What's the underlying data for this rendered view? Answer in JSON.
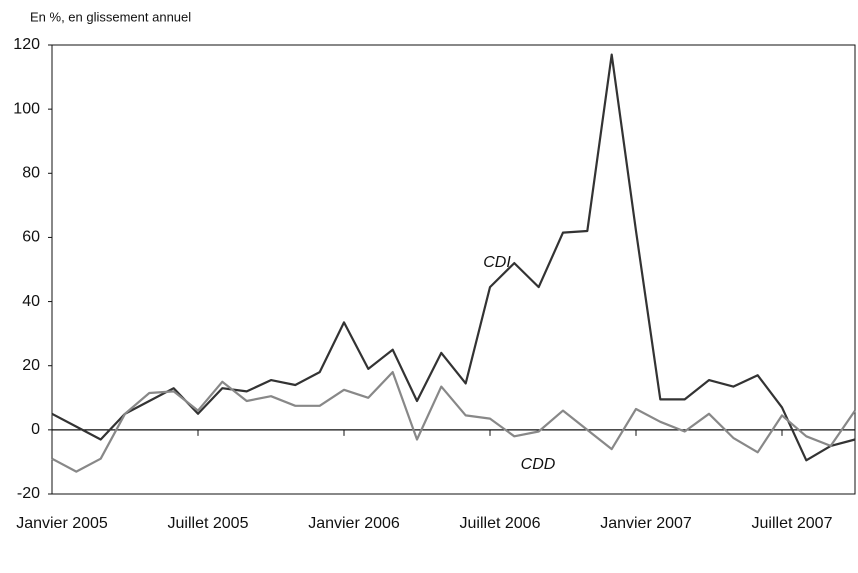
{
  "chart_data": {
    "type": "line",
    "subtitle": "En %, en glissement annuel",
    "categories": [
      "Janvier 2005",
      null,
      null,
      null,
      null,
      null,
      "Juillet 2005",
      null,
      null,
      null,
      null,
      null,
      "Janvier 2006",
      null,
      null,
      null,
      null,
      null,
      "Juillet 2006",
      null,
      null,
      null,
      null,
      null,
      "Janvier 2007",
      null,
      null,
      null,
      null,
      null,
      "Juillet 2007",
      null,
      null,
      null
    ],
    "series": [
      {
        "name": "CDI",
        "color": "#333333",
        "values": [
          5,
          1,
          -3,
          5,
          9,
          13,
          5,
          13,
          12,
          15.5,
          14,
          18,
          33.5,
          19,
          25,
          9,
          24,
          14.5,
          44.5,
          52,
          44.5,
          61.5,
          62,
          117,
          62,
          9.5,
          9.5,
          15.5,
          13.5,
          17,
          7,
          -9.5,
          -5,
          -3
        ]
      },
      {
        "name": "CDD",
        "color": "#888888",
        "values": [
          -9,
          -13,
          -9,
          5,
          11.5,
          12,
          6,
          15,
          9,
          10.5,
          7.5,
          7.5,
          12.5,
          10,
          18,
          -3,
          13.5,
          4.5,
          3.5,
          -2,
          -0.5,
          6,
          0,
          -6,
          6.5,
          2.5,
          -0.5,
          5,
          -2.5,
          -7,
          4.5,
          -2,
          -5,
          6
        ]
      }
    ],
    "ylim": [
      -20,
      120
    ],
    "yticks": [
      -20,
      0,
      20,
      40,
      60,
      80,
      100,
      120
    ],
    "grid": false
  }
}
